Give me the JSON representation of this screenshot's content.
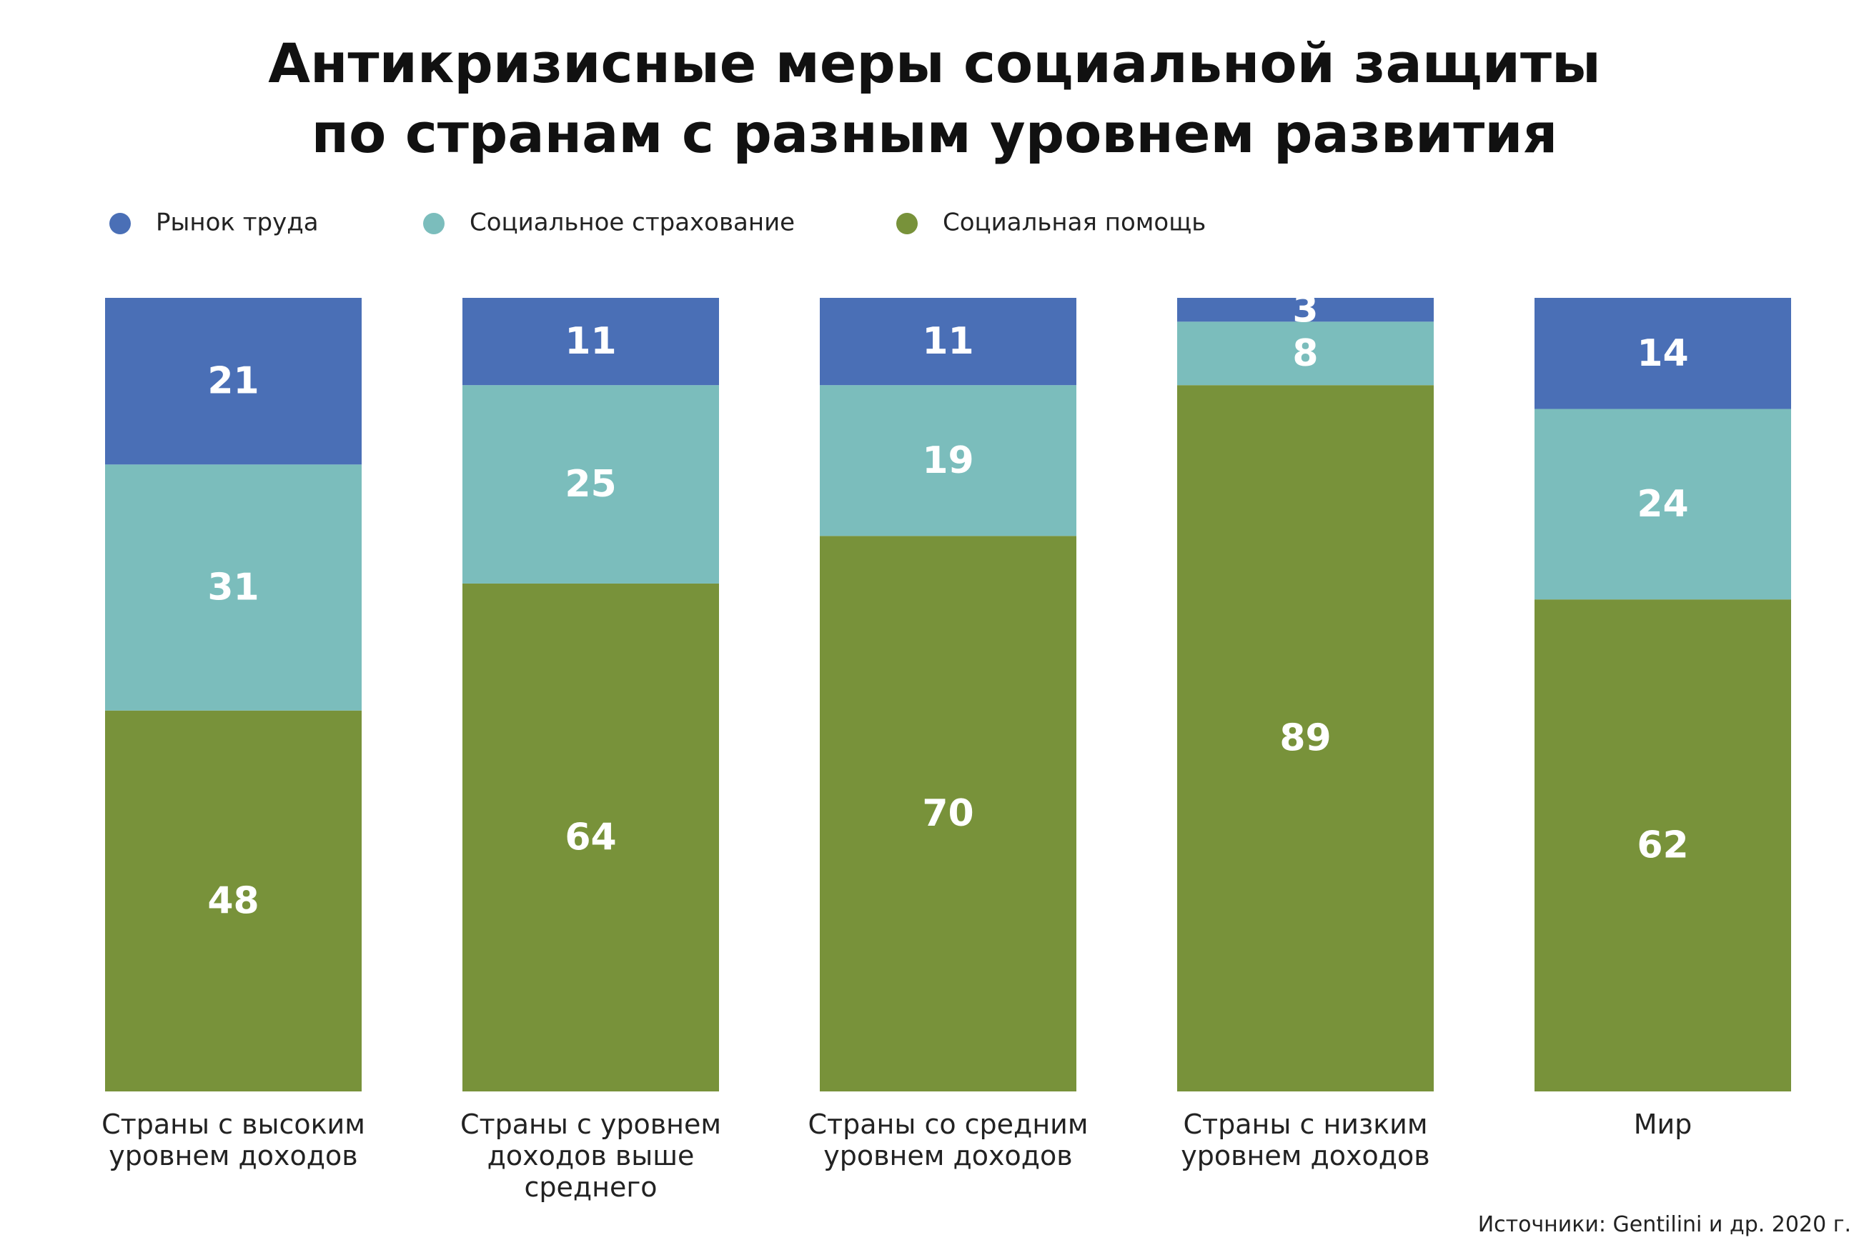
{
  "chart_data": {
    "type": "stacked_bar",
    "title": "Антикризисные меры социальной защиты\nпо странам с разным уровнем развития",
    "categories": [
      "Страны с высоким\nуровнем доходов",
      "Страны с  уровнем\nдоходов выше\nсреднего",
      "Страны со средним\nуровнем доходов",
      "Страны с низким\nуровнем доходов",
      "Мир"
    ],
    "series": [
      {
        "name": "Рынок труда",
        "color": "#4a6fb6",
        "values": [
          21,
          11,
          11,
          3,
          14
        ]
      },
      {
        "name": "Социальное страхование",
        "color": "#7bbdbc",
        "values": [
          31,
          25,
          19,
          8,
          24
        ]
      },
      {
        "name": "Социальная помощь",
        "color": "#78923a",
        "values": [
          48,
          64,
          70,
          89,
          62
        ]
      }
    ],
    "ylim": [
      0,
      100
    ],
    "source": "Источники: Gentilini и др. 2020 г."
  }
}
